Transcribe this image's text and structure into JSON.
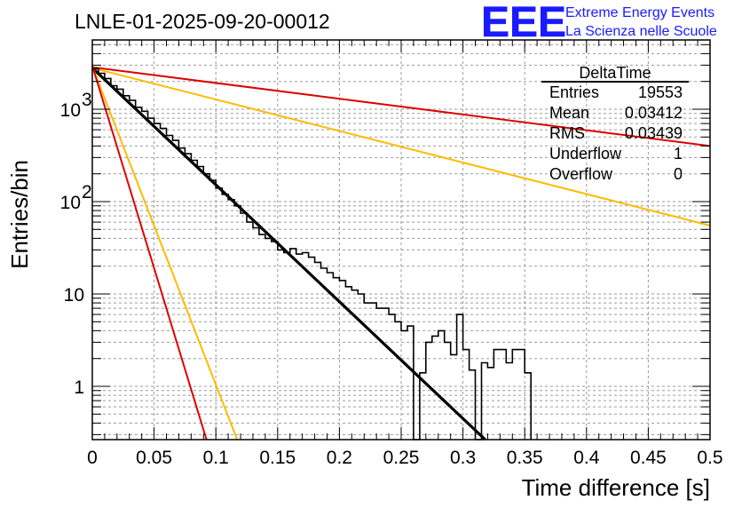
{
  "title": "LNLE-01-2025-09-20-00012",
  "logo": {
    "big": "EEE",
    "line1": "Extreme Energy Events",
    "line2": "La Scienza nelle Scuole",
    "color": "#1a1aff"
  },
  "stats": {
    "name": "DeltaTime",
    "rows": [
      {
        "label": "Entries",
        "value": "19553"
      },
      {
        "label": "Mean",
        "value": "0.03412"
      },
      {
        "label": "RMS",
        "value": "0.03439"
      },
      {
        "label": "Underflow",
        "value": "1"
      },
      {
        "label": "Overflow",
        "value": "0"
      }
    ]
  },
  "chart_data": {
    "type": "histogram",
    "title": "LNLE-01-2025-09-20-00012",
    "xlabel": "Time difference [s]",
    "ylabel": "Entries/bin",
    "xlim": [
      0,
      0.5
    ],
    "ylim": [
      0.25,
      5000
    ],
    "yscale": "log",
    "grid": true,
    "x_ticks": [
      "0",
      "0.05",
      "0.1",
      "0.15",
      "0.2",
      "0.25",
      "0.3",
      "0.35",
      "0.4",
      "0.45",
      "0.5"
    ],
    "y_ticks": [
      {
        "value": 1,
        "base": "1",
        "exp": ""
      },
      {
        "value": 10,
        "base": "10",
        "exp": ""
      },
      {
        "value": 100,
        "base": "10",
        "exp": "2"
      },
      {
        "value": 1000,
        "base": "10",
        "exp": "3"
      }
    ],
    "bin_width": 0.005,
    "histogram": [
      2750,
      2450,
      2150,
      1800,
      1650,
      1400,
      1250,
      1050,
      950,
      800,
      700,
      620,
      520,
      460,
      380,
      330,
      280,
      240,
      200,
      170,
      140,
      120,
      105,
      90,
      75,
      60,
      52,
      44,
      40,
      37,
      30,
      28,
      31,
      27,
      28,
      25,
      22,
      19,
      17,
      15,
      14,
      12,
      11,
      10,
      8,
      8,
      7,
      7,
      6,
      5,
      4,
      4.5,
      0.25,
      1.4,
      3,
      3.5,
      4,
      3,
      2.2,
      6,
      2.5,
      1.5,
      0.25,
      1.8,
      1.6,
      2.5,
      2.5,
      1.8,
      2.5,
      2.5,
      1.4
    ],
    "fit_lines": [
      {
        "name": "fit",
        "color": "#000000",
        "width": 3.2,
        "points": [
          [
            0,
            2800
          ],
          [
            0.32,
            0.25
          ]
        ]
      },
      {
        "name": "rate-upper-1",
        "color": "#dd0000",
        "width": 2,
        "points": [
          [
            0,
            2850
          ],
          [
            0.5,
            400
          ]
        ]
      },
      {
        "name": "rate-upper-2",
        "color": "#ffbb00",
        "width": 2,
        "points": [
          [
            0,
            2800
          ],
          [
            0.5,
            55
          ]
        ]
      },
      {
        "name": "rate-lower-1",
        "color": "#ffbb00",
        "width": 2,
        "points": [
          [
            0,
            2900
          ],
          [
            0.118,
            0.25
          ]
        ]
      },
      {
        "name": "rate-lower-2",
        "color": "#dd0000",
        "width": 2,
        "points": [
          [
            0,
            2950
          ],
          [
            0.093,
            0.25
          ]
        ]
      }
    ]
  }
}
